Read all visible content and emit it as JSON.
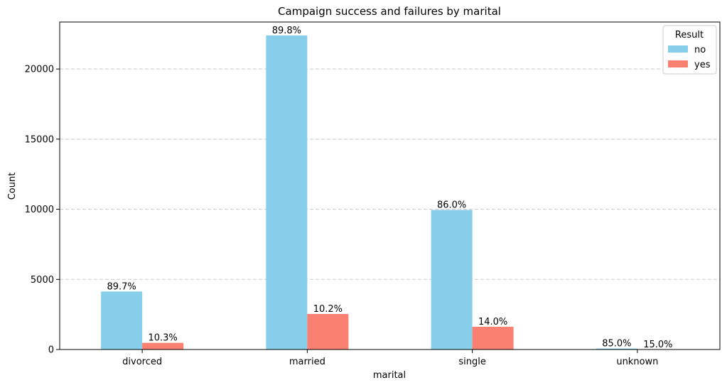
{
  "chart_data": {
    "type": "bar",
    "title": "Campaign success and failures by marital",
    "xlabel": "marital",
    "ylabel": "Count",
    "categories": [
      "divorced",
      "married",
      "single",
      "unknown"
    ],
    "ylim": [
      0,
      23350
    ],
    "yticks": [
      0,
      5000,
      10000,
      15000,
      20000
    ],
    "grid": "horizontal dashed",
    "series": [
      {
        "name": "no",
        "color": "#87ceeb",
        "values": [
          4136,
          22396,
          9948,
          68
        ],
        "labels": [
          "89.7%",
          "89.8%",
          "86.0%",
          "85.0%"
        ]
      },
      {
        "name": "yes",
        "color": "#fa8072",
        "values": [
          476,
          2532,
          1620,
          12
        ],
        "labels": [
          "10.3%",
          "10.2%",
          "14.0%",
          "15.0%"
        ]
      }
    ],
    "legend": {
      "title": "Result",
      "placement": "top-right"
    }
  }
}
